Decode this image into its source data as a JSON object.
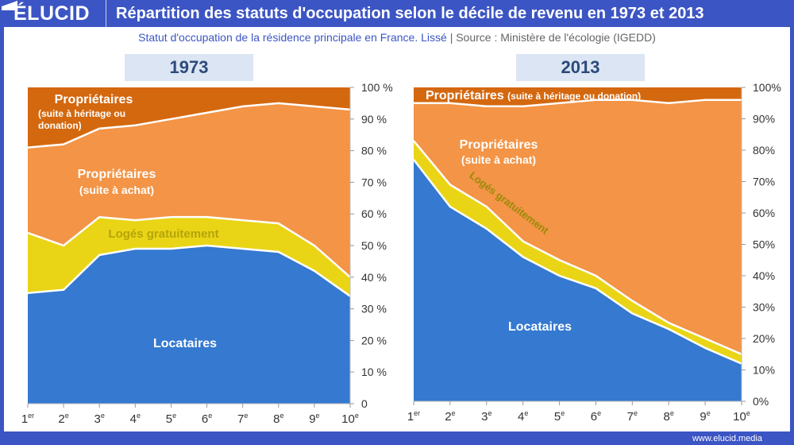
{
  "header": {
    "logo": "ÉLUCID",
    "title": "Répartition des statuts d'occupation selon le décile de revenu en 1973 et 2013"
  },
  "subtitle": {
    "text": "Statut d'occupation de la résidence principale en France. Lissé",
    "separator": "|",
    "source": "Source : Ministère de l'écologie (IGEDD)"
  },
  "footer": {
    "url": "www.elucid.media"
  },
  "colors": {
    "brand": "#3c55c4",
    "locataires": "#3579d0",
    "loges": "#e9d515",
    "achat": "#f39446",
    "heritage": "#d4680f"
  },
  "chart_data": [
    {
      "type": "area",
      "stacked": true,
      "title": "1973",
      "categories": [
        "1er",
        "2e",
        "3e",
        "4e",
        "5e",
        "6e",
        "7e",
        "8e",
        "9e",
        "10e"
      ],
      "ylim": [
        0,
        100
      ],
      "yticks": [
        "0",
        "10 %",
        "20 %",
        "30 %",
        "40 %",
        "50 %",
        "60 %",
        "70 %",
        "80 %",
        "90 %",
        "100 %"
      ],
      "series": [
        {
          "name": "Locataires",
          "values": [
            35,
            36,
            47,
            49,
            49,
            50,
            49,
            48,
            42,
            34
          ]
        },
        {
          "name": "Logés gratuitement",
          "values": [
            19,
            14,
            12,
            9,
            10,
            9,
            9,
            9,
            8,
            6
          ]
        },
        {
          "name": "Propriétaires (suite à achat)",
          "values": [
            27,
            32,
            28,
            30,
            31,
            33,
            36,
            38,
            44,
            53
          ]
        },
        {
          "name": "Propriétaires (suite à héritage ou donation)",
          "values": [
            19,
            18,
            13,
            12,
            10,
            8,
            6,
            5,
            6,
            7
          ]
        }
      ],
      "labels": {
        "locataires": "Locataires",
        "loges": "Logés gratuitement",
        "achat": [
          "Propriétaires",
          "(suite à achat)"
        ],
        "heritage": [
          "Propriétaires",
          "(suite à héritage ou",
          "donation)"
        ]
      }
    },
    {
      "type": "area",
      "stacked": true,
      "title": "2013",
      "categories": [
        "1er",
        "2e",
        "3e",
        "4e",
        "5e",
        "6e",
        "7e",
        "8e",
        "9e",
        "10e"
      ],
      "ylim": [
        0,
        100
      ],
      "yticks": [
        "0%",
        "10%",
        "20%",
        "30%",
        "40%",
        "50%",
        "60%",
        "70%",
        "80%",
        "90%",
        "100%"
      ],
      "series": [
        {
          "name": "Locataires",
          "values": [
            77,
            62,
            55,
            46,
            40,
            36,
            28,
            23,
            17,
            12
          ]
        },
        {
          "name": "Logés gratuitement",
          "values": [
            6,
            7,
            7,
            5,
            5,
            4,
            4,
            2,
            3,
            3
          ]
        },
        {
          "name": "Propriétaires (suite à achat)",
          "values": [
            12,
            26,
            32,
            43,
            50,
            56,
            64,
            70,
            76,
            81
          ]
        },
        {
          "name": "Propriétaires (suite à héritage ou donation)",
          "values": [
            5,
            5,
            6,
            6,
            5,
            4,
            4,
            5,
            4,
            4
          ]
        }
      ],
      "labels": {
        "locataires": "Locataires",
        "loges": "Logés gratuitement",
        "achat": [
          "Propriétaires",
          "(suite à achat)"
        ],
        "heritage": [
          "Propriétaires",
          "(suite à héritage ou donation)"
        ]
      }
    }
  ]
}
